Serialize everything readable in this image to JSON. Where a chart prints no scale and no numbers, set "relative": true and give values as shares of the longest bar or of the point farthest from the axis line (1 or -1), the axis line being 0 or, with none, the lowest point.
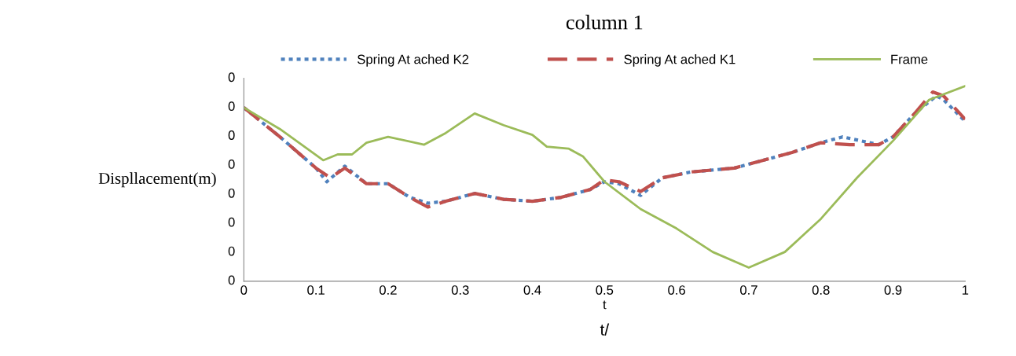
{
  "chart_data": {
    "type": "line",
    "title": "column 1",
    "xlabel": "t/",
    "ylabel": "Displlacement(m)",
    "relative": true,
    "xlim": [
      0,
      1
    ],
    "xticks": [
      0,
      0.1,
      0.2,
      0.3,
      0.4,
      0.5,
      0.6,
      0.7,
      0.8,
      0.9,
      1
    ],
    "grid": false,
    "legend": "top",
    "marker": "none",
    "annotations": [
      "t",
      "0",
      "0",
      "0",
      "0",
      "0",
      "0",
      "0",
      "0"
    ],
    "series": [
      {
        "name": "Spring At ached K2",
        "color": "#4f81bd",
        "line_style": "dotted",
        "x": [
          0,
          0.05,
          0.1,
          0.115,
          0.14,
          0.17,
          0.2,
          0.23,
          0.255,
          0.28,
          0.32,
          0.36,
          0.4,
          0.44,
          0.48,
          0.5,
          0.52,
          0.55,
          0.58,
          0.62,
          0.68,
          0.72,
          0.76,
          0.8,
          0.83,
          0.88,
          0.9,
          0.93,
          0.96,
          0.97,
          1.0
        ],
        "values": [
          0.89,
          0.74,
          0.58,
          0.51,
          0.59,
          0.5,
          0.5,
          0.43,
          0.4,
          0.41,
          0.45,
          0.42,
          0.41,
          0.43,
          0.47,
          0.51,
          0.5,
          0.44,
          0.53,
          0.56,
          0.58,
          0.62,
          0.66,
          0.71,
          0.74,
          0.7,
          0.74,
          0.86,
          0.95,
          0.93,
          0.82
        ]
      },
      {
        "name": "Spring At ached K1",
        "color": "#c0504d",
        "line_style": "dashed",
        "x": [
          0,
          0.05,
          0.1,
          0.12,
          0.14,
          0.17,
          0.2,
          0.23,
          0.255,
          0.28,
          0.32,
          0.36,
          0.4,
          0.44,
          0.48,
          0.5,
          0.52,
          0.55,
          0.58,
          0.62,
          0.68,
          0.72,
          0.76,
          0.8,
          0.84,
          0.88,
          0.9,
          0.93,
          0.955,
          0.97,
          1.0
        ],
        "values": [
          0.89,
          0.74,
          0.58,
          0.53,
          0.58,
          0.5,
          0.5,
          0.43,
          0.38,
          0.41,
          0.45,
          0.42,
          0.41,
          0.43,
          0.47,
          0.52,
          0.51,
          0.46,
          0.53,
          0.56,
          0.58,
          0.62,
          0.66,
          0.71,
          0.7,
          0.7,
          0.74,
          0.86,
          0.97,
          0.95,
          0.83
        ]
      },
      {
        "name": "Frame",
        "color": "#9bbb59",
        "line_style": "solid",
        "x": [
          0,
          0.05,
          0.11,
          0.13,
          0.15,
          0.17,
          0.2,
          0.25,
          0.28,
          0.32,
          0.36,
          0.4,
          0.42,
          0.45,
          0.47,
          0.5,
          0.55,
          0.6,
          0.65,
          0.7,
          0.75,
          0.8,
          0.85,
          0.9,
          0.95,
          1.0
        ],
        "values": [
          0.89,
          0.78,
          0.62,
          0.65,
          0.65,
          0.71,
          0.74,
          0.7,
          0.76,
          0.86,
          0.8,
          0.75,
          0.69,
          0.68,
          0.64,
          0.51,
          0.37,
          0.27,
          0.15,
          0.07,
          0.15,
          0.32,
          0.53,
          0.72,
          0.93,
          1
        ]
      }
    ]
  }
}
